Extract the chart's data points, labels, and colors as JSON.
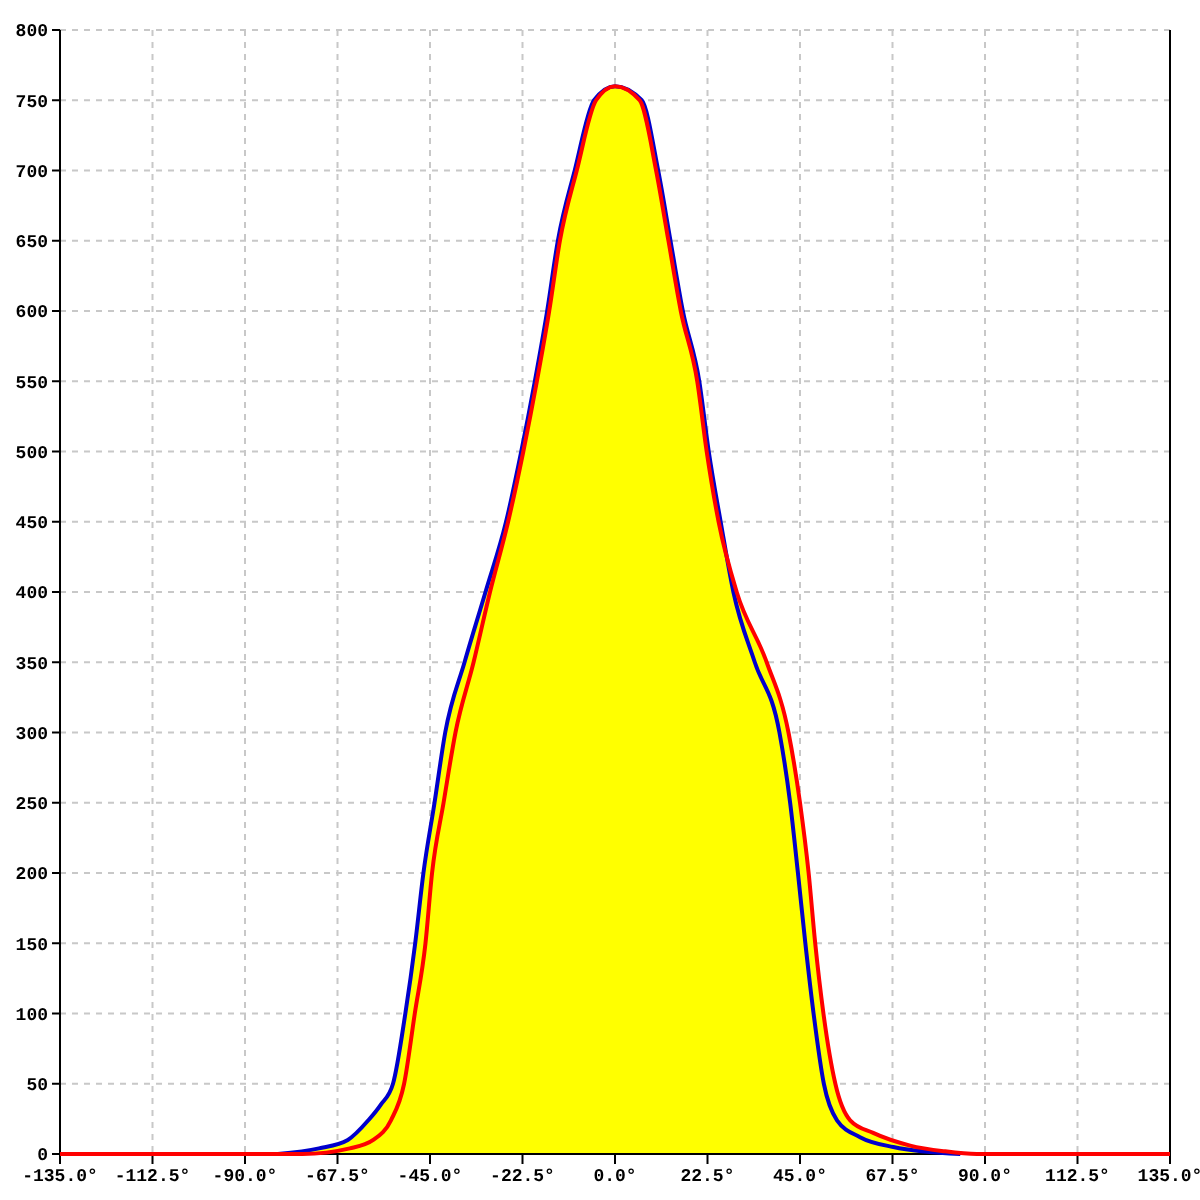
{
  "chart_data": {
    "type": "line",
    "xlim": [
      -135,
      135
    ],
    "xticks": [
      {
        "value": -135,
        "label": "-135.0°"
      },
      {
        "value": -112.5,
        "label": "-112.5°"
      },
      {
        "value": -90,
        "label": "-90.0°"
      },
      {
        "value": -67.5,
        "label": "-67.5°"
      },
      {
        "value": -45,
        "label": "-45.0°"
      },
      {
        "value": -22.5,
        "label": "-22.5°"
      },
      {
        "value": 0,
        "label": "0.0°"
      },
      {
        "value": 22.5,
        "label": "22.5°"
      },
      {
        "value": 45,
        "label": "45.0°"
      },
      {
        "value": 67.5,
        "label": "67.5°"
      },
      {
        "value": 90,
        "label": "90.0°"
      },
      {
        "value": 112.5,
        "label": "112.5°"
      },
      {
        "value": 135,
        "label": "135.0°"
      }
    ],
    "ylim": [
      0,
      800
    ],
    "yticks": [
      0,
      50,
      100,
      150,
      200,
      250,
      300,
      350,
      400,
      450,
      500,
      550,
      600,
      650,
      700,
      750,
      800
    ],
    "grid": true,
    "series": [
      {
        "type": "area",
        "color": "#ffff00",
        "x": [
          -82,
          -72,
          -65,
          -60,
          -57,
          -54,
          -51,
          -48.6,
          -46.6,
          -43.9,
          -41.3,
          -36.6,
          -31.5,
          -26.5,
          -22.8,
          -19.5,
          -16.5,
          -13.9,
          -9.8,
          -5.1,
          0,
          6.5,
          10.5,
          13.5,
          16.5,
          20.5,
          22.8,
          25.7,
          29.6,
          36.9,
          42.2,
          45,
          47.1,
          48.7,
          50.7,
          53.6,
          57.2,
          62.8,
          71.8,
          80,
          88
        ],
        "values": [
          0,
          4,
          10,
          24,
          35,
          50,
          100,
          150,
          200,
          250,
          300,
          350,
          400,
          450,
          500,
          550,
          600,
          650,
          700,
          750,
          760,
          750,
          700,
          650,
          600,
          550,
          500,
          450,
          400,
          350,
          300,
          250,
          200,
          150,
          100,
          50,
          24,
          15,
          6,
          2,
          0
        ]
      },
      {
        "color": "#0000cc",
        "x": [
          -82,
          -72,
          -65,
          -60,
          -57,
          -54,
          -51,
          -48.6,
          -46.6,
          -43.9,
          -41.3,
          -36.6,
          -31.5,
          -26.5,
          -22.8,
          -19.5,
          -16.5,
          -13.9,
          -9.8,
          -5.1,
          0,
          6.5,
          10.5,
          13.5,
          16.5,
          20.5,
          22.8,
          25.7,
          28.8,
          34,
          40,
          42.6,
          44.5,
          46.3,
          48.3,
          50.8,
          54,
          59.6,
          67.7,
          84
        ],
        "values": [
          0,
          4,
          10,
          24,
          35,
          50,
          100,
          150,
          200,
          250,
          300,
          350,
          400,
          450,
          500,
          550,
          600,
          650,
          700,
          750,
          760,
          750,
          700,
          650,
          600,
          550,
          500,
          450,
          400,
          350,
          300,
          250,
          200,
          150,
          100,
          50,
          24,
          12,
          5,
          0
        ]
      },
      {
        "color": "#ff0000",
        "x": [
          -135,
          -76,
          -64.5,
          -58.8,
          -54.5,
          -51.3,
          -48.7,
          -46.1,
          -44.5,
          -41.7,
          -38.8,
          -34.4,
          -30.4,
          -26,
          -22.3,
          -19,
          -16,
          -13.4,
          -9.3,
          -4.6,
          0,
          6,
          10,
          13,
          16,
          20,
          22.3,
          25.2,
          29.6,
          36.9,
          42.2,
          45,
          47.1,
          48.7,
          50.7,
          53.6,
          57.2,
          62.8,
          71.8,
          80,
          88,
          135
        ],
        "values": [
          0,
          0,
          4,
          10,
          24,
          50,
          100,
          150,
          200,
          250,
          300,
          350,
          400,
          450,
          500,
          550,
          600,
          650,
          700,
          750,
          760,
          750,
          700,
          650,
          600,
          550,
          500,
          450,
          400,
          350,
          300,
          250,
          200,
          150,
          100,
          50,
          24,
          15,
          6,
          2,
          0,
          0
        ]
      }
    ]
  }
}
